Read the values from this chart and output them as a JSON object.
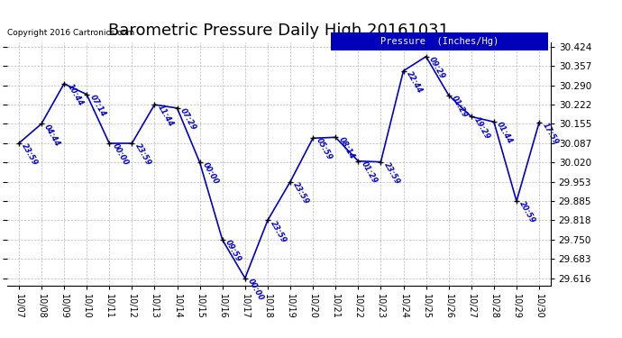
{
  "title": "Barometric Pressure Daily High 20161031",
  "copyright": "Copyright 2016 Cartronics.com",
  "legend_label": "Pressure  (Inches/Hg)",
  "bg_color": "#ffffff",
  "line_color": "#0000cc",
  "marker_color": "#000000",
  "grid_color": "#bbbbbb",
  "dates": [
    "10/07",
    "10/08",
    "10/09",
    "10/10",
    "10/11",
    "10/12",
    "10/13",
    "10/14",
    "10/15",
    "10/16",
    "10/17",
    "10/18",
    "10/19",
    "10/20",
    "10/21",
    "10/22",
    "10/23",
    "10/24",
    "10/25",
    "10/26",
    "10/27",
    "10/28",
    "10/29",
    "10/30"
  ],
  "values": [
    30.087,
    30.155,
    30.295,
    30.258,
    30.087,
    30.087,
    30.222,
    30.21,
    30.02,
    29.75,
    29.616,
    29.818,
    29.953,
    30.105,
    30.108,
    30.025,
    30.022,
    30.34,
    30.39,
    30.255,
    30.18,
    30.162,
    29.885,
    30.16
  ],
  "labels": [
    "23:59",
    "04:44",
    "10:44",
    "07:14",
    "00:00",
    "23:59",
    "11:44",
    "07:29",
    "00:00",
    "09:59",
    "00:00",
    "23:59",
    "23:59",
    "05:59",
    "08:14",
    "01:29",
    "23:59",
    "22:44",
    "09:29",
    "01:29",
    "19:29",
    "01:44",
    "20:59",
    "17:59"
  ],
  "yticks": [
    29.616,
    29.683,
    29.75,
    29.818,
    29.885,
    29.953,
    30.02,
    30.087,
    30.155,
    30.222,
    30.29,
    30.357,
    30.424
  ],
  "ymin": 29.59,
  "ymax": 30.44,
  "title_fontsize": 13,
  "copyright_fontsize": 6.5,
  "label_fontsize": 6.0,
  "ytick_fontsize": 7.5,
  "xtick_fontsize": 7.0
}
